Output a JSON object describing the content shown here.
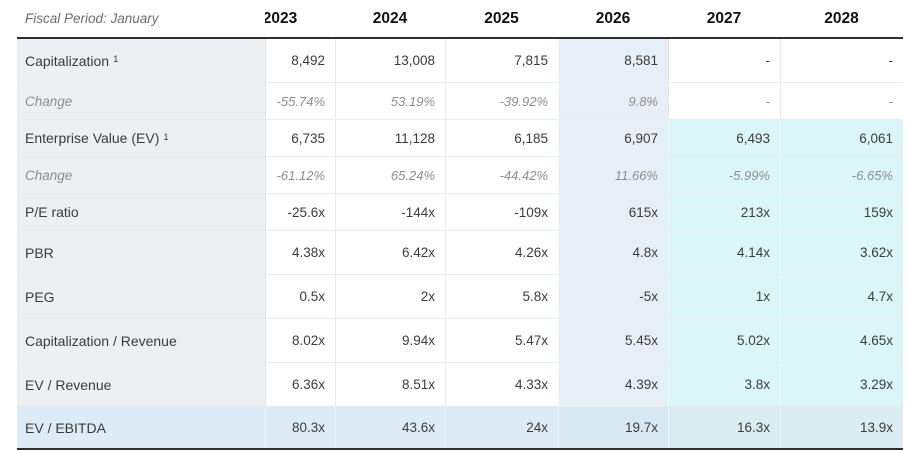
{
  "table": {
    "fiscal_period_label": "Fiscal Period: January",
    "years": [
      "2023",
      "2024",
      "2025",
      "2026",
      "2027",
      "2028"
    ],
    "column_styles": [
      "plain",
      "plain",
      "plain",
      "blue",
      "cyan",
      "cyan"
    ],
    "colors": {
      "label_column_bg": "#edf0f3",
      "blue_column_bg": "#e6eff7",
      "cyan_column_bg": "#dbf6f9",
      "highlighted_row_bg": "#dcebf6",
      "dark_border": "#2f2f2f",
      "change_text": "#8d8d8d",
      "value_text": "#3c3c3c"
    },
    "rows": [
      {
        "label": "Capitalization",
        "sup": "1",
        "style": "normal",
        "cyan_tail": false,
        "highlighted": false,
        "values": [
          "8,492",
          "13,008",
          "7,815",
          "8,581",
          "-",
          "-"
        ]
      },
      {
        "label": "Change",
        "sup": "",
        "style": "change",
        "cyan_tail": false,
        "highlighted": false,
        "values": [
          "-55.74%",
          "53.19%",
          "-39.92%",
          "9.8%",
          "-",
          "-"
        ]
      },
      {
        "label": "Enterprise Value (EV)",
        "sup": "1",
        "style": "normal",
        "cyan_tail": true,
        "highlighted": false,
        "values": [
          "6,735",
          "11,128",
          "6,185",
          "6,907",
          "6,493",
          "6,061"
        ]
      },
      {
        "label": "Change",
        "sup": "",
        "style": "change",
        "cyan_tail": true,
        "highlighted": false,
        "values": [
          "-61.12%",
          "65.24%",
          "-44.42%",
          "11.66%",
          "-5.99%",
          "-6.65%"
        ]
      },
      {
        "label": "P/E ratio",
        "sup": "",
        "style": "normal",
        "cyan_tail": true,
        "highlighted": false,
        "values": [
          "-25.6x",
          "-144x",
          "-109x",
          "615x",
          "213x",
          "159x"
        ]
      },
      {
        "label": "PBR",
        "sup": "",
        "style": "normal",
        "cyan_tail": true,
        "highlighted": false,
        "values": [
          "4.38x",
          "6.42x",
          "4.26x",
          "4.8x",
          "4.14x",
          "3.62x"
        ]
      },
      {
        "label": "PEG",
        "sup": "",
        "style": "normal",
        "cyan_tail": true,
        "highlighted": false,
        "values": [
          "0.5x",
          "2x",
          "5.8x",
          "-5x",
          "1x",
          "4.7x"
        ]
      },
      {
        "label": "Capitalization / Revenue",
        "sup": "",
        "style": "normal",
        "cyan_tail": true,
        "highlighted": false,
        "values": [
          "8.02x",
          "9.94x",
          "5.47x",
          "5.45x",
          "5.02x",
          "4.65x"
        ]
      },
      {
        "label": "EV / Revenue",
        "sup": "",
        "style": "normal",
        "cyan_tail": true,
        "highlighted": false,
        "values": [
          "6.36x",
          "8.51x",
          "4.33x",
          "4.39x",
          "3.8x",
          "3.29x"
        ]
      },
      {
        "label": "EV / EBITDA",
        "sup": "",
        "style": "normal",
        "cyan_tail": true,
        "highlighted": true,
        "values": [
          "80.3x",
          "43.6x",
          "24x",
          "19.7x",
          "16.3x",
          "13.9x"
        ]
      }
    ]
  }
}
